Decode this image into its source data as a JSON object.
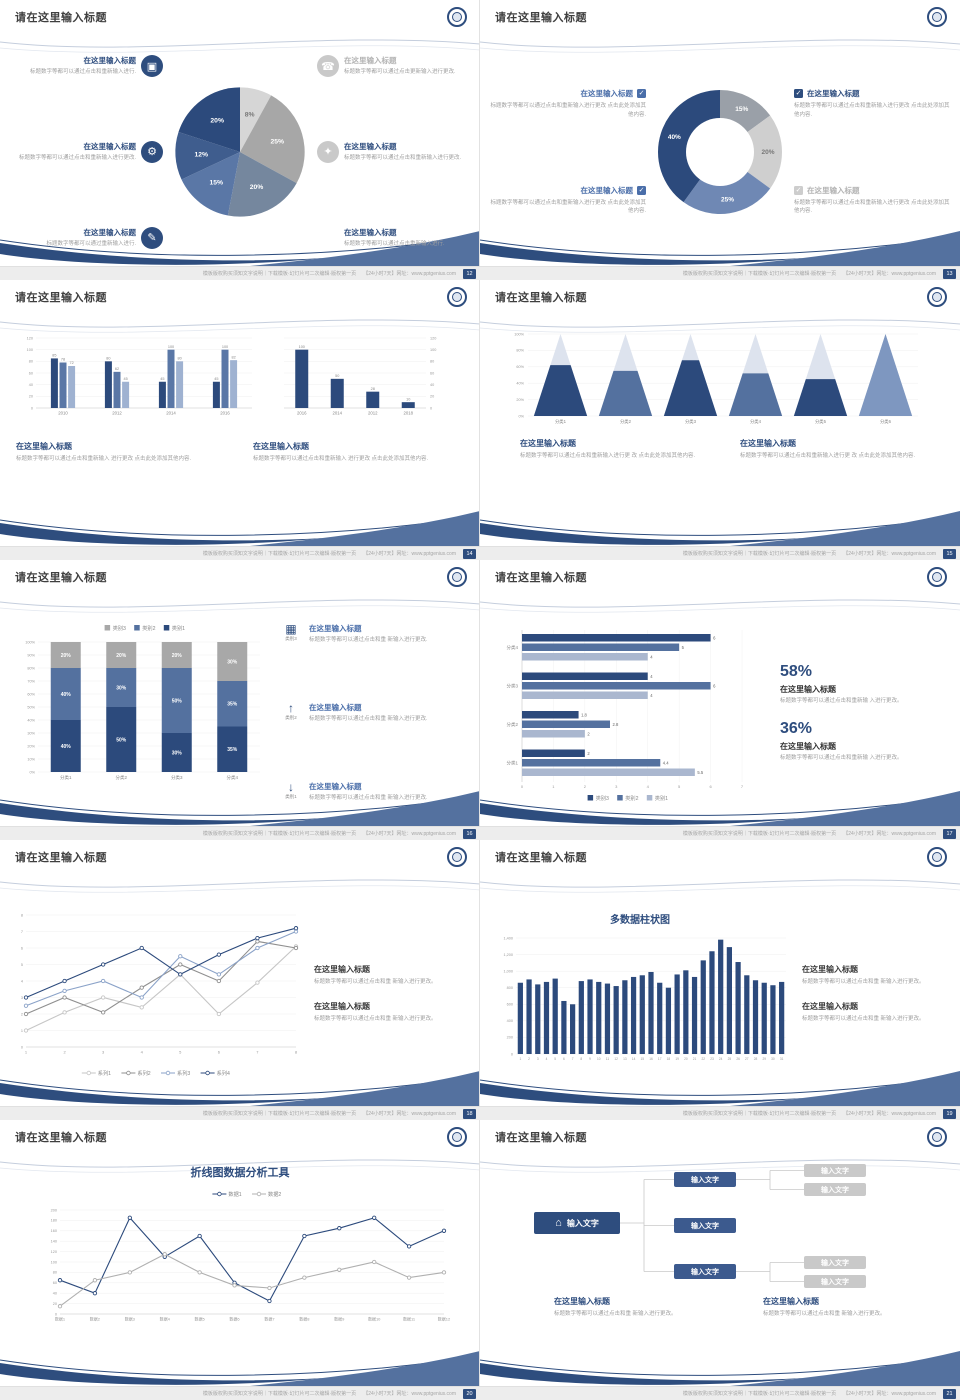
{
  "common": {
    "slide_title": "请在这里输入标题",
    "footer_left": "模板版权购买须知文字说明｜下载模板·幻灯片可二次编辑·版权第一页",
    "footer_meta": "【24小时7天】网址：www.pptgenius.com"
  },
  "colors": {
    "navy": "#2e4d7e",
    "steel": "#54719f",
    "light_blue": "#9fb2d1",
    "gray": "#a8a8a8",
    "light_gray": "#d2d2d2",
    "body_text": "#a0a0a0",
    "title_text": "#3f3f3f"
  },
  "slides": [
    {
      "page": "12",
      "left_items": [
        {
          "icon": "monitor-icon",
          "glyph": "▣",
          "title": "在这里输入标题",
          "body": "标题数字等都可以通过点击和重新输入进行."
        },
        {
          "icon": "car-icon",
          "glyph": "⚙",
          "title": "在这里输入标题",
          "body": "标题数字等都可以通过点击和重新输入进行更改."
        },
        {
          "icon": "book-icon",
          "glyph": "✎",
          "title": "在这里输入标题",
          "body": "标题数字等都可以通过重新输入进行."
        }
      ],
      "right_items": [
        {
          "icon": "phone-icon",
          "glyph": "☎",
          "title": "在这里输入标题",
          "body": "标题数字等都可以通过点击更新输入进行更改."
        },
        {
          "icon": "lock-icon",
          "glyph": "✦",
          "title": "在这里输入标题",
          "body": "标题数字等都可以通过点击和重新输入进行更改."
        },
        {
          "icon": "bike-icon",
          "glyph": "✪",
          "title": "在这里输入标题",
          "body": "标题数字等都可以通过点击重新输入进行."
        }
      ],
      "chart": {
        "type": "pie",
        "values": [
          8,
          25,
          20,
          15,
          12,
          20
        ],
        "labels": [
          "8%",
          "25%",
          "20%",
          "15%",
          "12%",
          "20%"
        ],
        "colors": [
          "#d6d6d6",
          "#a7a7a7",
          "#75879e",
          "#5a77a6",
          "#3f5d8e",
          "#2c4a7c"
        ],
        "label_colors": [
          "#777777",
          "#ffffff",
          "#ffffff",
          "#ffffff",
          "#ffffff",
          "#ffffff"
        ]
      }
    },
    {
      "page": "13",
      "left_items": [
        {
          "check": "✓",
          "title": "在这里输入标题",
          "body": "标题数字等都可以通过点击和重新输入进行更改 点击此处添加其他内容."
        },
        {
          "check": "✓",
          "title": "在这里输入标题",
          "body": "标题数字等都可以通过点击和重新输入进行更改 点击此处添加其他内容."
        }
      ],
      "right_items": [
        {
          "check": "✓",
          "title": "在这里输入标题",
          "body": "标题数字等都可以通过点击和重新输入进行更改 点击此处添加其他内容."
        },
        {
          "check": "✓",
          "title": "在这里输入标题",
          "body": "标题数字等都可以通过点击和重新输入进行更改 点击此处添加其他内容."
        }
      ],
      "chart": {
        "type": "donut",
        "values": [
          15,
          20,
          25,
          40
        ],
        "labels": [
          "15%",
          "20%",
          "25%",
          "40%"
        ],
        "colors": [
          "#9aa0a8",
          "#cfcfcf",
          "#6f88b4",
          "#2c4a7c"
        ],
        "label_colors": [
          "#ffffff",
          "#777777",
          "#ffffff",
          "#ffffff"
        ]
      }
    },
    {
      "page": "14",
      "chart_left": {
        "type": "bar",
        "categories": [
          "2010",
          "2012",
          "2014",
          "2016"
        ],
        "series": [
          {
            "color": "#2c4a7c",
            "values": [
              85,
              80,
              45,
              45
            ]
          },
          {
            "color": "#5a77a6",
            "values": [
              78,
              62,
              100,
              100
            ]
          },
          {
            "color": "#9fb2d1",
            "values": [
              72,
              45,
              80,
              82
            ]
          }
        ],
        "ymax": 120,
        "yticks": [
          0,
          20,
          40,
          60,
          80,
          100,
          120
        ]
      },
      "chart_right": {
        "type": "bar",
        "categories": [
          "2016",
          "2014",
          "2012",
          "2018"
        ],
        "series": [
          {
            "color": "#2c4a7c",
            "values": [
              100,
              50,
              28,
              10
            ]
          }
        ],
        "ymax": 120,
        "yticks": [
          0,
          20,
          40,
          60,
          80,
          100,
          120
        ]
      },
      "text_blocks": [
        {
          "title": "在这里输入标题",
          "body": "标题数字等都可以通过点击和重新输入 进行更改 点击此处添加其他内容."
        },
        {
          "title": "在这里输入标题",
          "body": "标题数字等都可以通过点击和重新输入 进行更改 点击此处添加其他内容."
        }
      ]
    },
    {
      "page": "15",
      "chart": {
        "type": "pyramid",
        "categories": [
          "分类1",
          "分类2",
          "分类3",
          "分类4",
          "分类5",
          "分类6"
        ],
        "fill": [
          0.62,
          0.55,
          0.68,
          0.52,
          0.45,
          1
        ],
        "colors": [
          "#2c4a7c",
          "#54719f",
          "#2c4a7c",
          "#54719f",
          "#2c4a7c",
          "#7e97c0"
        ],
        "top_color": "#dde3ee",
        "yticks": [
          "0%",
          "20%",
          "40%",
          "60%",
          "80%",
          "100%"
        ]
      },
      "text_blocks": [
        {
          "title": "在这里输入标题",
          "body": "标题数字等都可以通过点击和重新输入进行更 改 点击此处添加其他内容."
        },
        {
          "title": "在这里输入标题",
          "body": "标题数字等都可以通过点击和重新输入进行更 改 点击此处添加其他内容."
        }
      ]
    },
    {
      "page": "16",
      "chart": {
        "type": "stacked",
        "categories": [
          "分类1",
          "分类2",
          "分类3",
          "分类4"
        ],
        "series": [
          {
            "name": "类别1",
            "color": "#2c4a7c",
            "values": [
              40,
              50,
              30,
              35
            ]
          },
          {
            "name": "类别2",
            "color": "#54719f",
            "values": [
              40,
              30,
              50,
              35
            ]
          },
          {
            "name": "类别3",
            "color": "#a8a8a8",
            "values": [
              20,
              20,
              20,
              30
            ]
          }
        ],
        "legend": [
          {
            "name": "类别3",
            "color": "#a8a8a8"
          },
          {
            "name": "类别2",
            "color": "#54719f"
          },
          {
            "name": "类别1",
            "color": "#2c4a7c"
          }
        ],
        "yticks": [
          "0%",
          "10%",
          "20%",
          "30%",
          "40%",
          "50%",
          "60%",
          "70%",
          "80%",
          "90%",
          "100%"
        ]
      },
      "right_items": [
        {
          "icon": "chart-icon",
          "glyph": "▦",
          "label": "类别3",
          "title": "在这里输入标题",
          "body": "标题数字等都可以通过点击和重 新输入进行更改."
        },
        {
          "icon": "up-arrow-icon",
          "glyph": "↑",
          "label": "类别2",
          "title": "在这里输入标题",
          "body": "标题数字等都可以通过点击和重 新输入进行更改."
        },
        {
          "icon": "down-arrow-icon",
          "glyph": "↓",
          "label": "类别1",
          "title": "在这里输入标题",
          "body": "标题数字等都可以通过点击和重 新输入进行更改."
        }
      ]
    },
    {
      "page": "17",
      "chart": {
        "type": "hbar",
        "categories": [
          "分类4",
          "分类3",
          "分类2",
          "分类1"
        ],
        "series": [
          {
            "name": "类别3",
            "color": "#2c4a7c",
            "values": [
              6,
              4,
              1.8,
              2
            ]
          },
          {
            "name": "类别2",
            "color": "#54719f",
            "values": [
              5,
              6,
              2.8,
              4.4
            ]
          },
          {
            "name": "类别1",
            "color": "#aab7cf",
            "values": [
              4,
              4,
              2,
              5.5
            ]
          }
        ],
        "xmax": 7,
        "xticks": [
          0,
          1,
          2,
          3,
          4,
          5,
          6,
          7
        ],
        "legend": [
          {
            "name": "类别3",
            "color": "#2c4a7c"
          },
          {
            "name": "类别2",
            "color": "#54719f"
          },
          {
            "name": "类别1",
            "color": "#aab7cf"
          }
        ]
      },
      "stats": [
        {
          "value": "58%",
          "title": "在这里输入标题",
          "body": "标题数字等都可以通过点击和重新输 入进行更改。"
        },
        {
          "value": "36%",
          "title": "在这里输入标题",
          "body": "标题数字等都可以通过点击和重新输 入进行更改。"
        }
      ]
    },
    {
      "page": "18",
      "chart": {
        "type": "line",
        "x_labels": [
          "1",
          "2",
          "3",
          "4",
          "5",
          "6",
          "7",
          "8"
        ],
        "ymax": 8,
        "yticks": [
          0,
          1,
          2,
          3,
          4,
          5,
          6,
          7,
          8
        ],
        "series": [
          {
            "name": "系列1",
            "color": "#c6c6c6",
            "values": [
              1,
              2.1,
              3,
              2.4,
              4.4,
              2,
              3.9,
              6.1
            ]
          },
          {
            "name": "系列2",
            "color": "#8f8f8f",
            "values": [
              2,
              3,
              2.1,
              3.6,
              5,
              4,
              6.4,
              6
            ]
          },
          {
            "name": "系列3",
            "color": "#8aa2c8",
            "values": [
              2.5,
              3.4,
              4,
              3,
              5.5,
              4.4,
              6,
              7
            ]
          },
          {
            "name": "系列4",
            "color": "#2c4a7c",
            "values": [
              3,
              4,
              5,
              6,
              4.4,
              5.6,
              6.6,
              7.2
            ]
          }
        ]
      },
      "text_blocks": [
        {
          "title": "在这里输入标题",
          "body": "标题数字等都可以通过点击和重 新输入进行更改。"
        },
        {
          "title": "在这里输入标题",
          "body": "标题数字等都可以通过点击和重 新输入进行更改。"
        }
      ]
    },
    {
      "page": "19",
      "chart_title": "多数据柱状图",
      "chart": {
        "type": "column",
        "color": "#2c4a7c",
        "ymax": 1400,
        "yticks": [
          "0",
          "200",
          "400",
          "600",
          "800",
          "1,000",
          "1,200",
          "1,400"
        ],
        "x_labels": [
          "1",
          "2",
          "3",
          "4",
          "5",
          "6",
          "7",
          "8",
          "9",
          "10",
          "11",
          "12",
          "13",
          "14",
          "15",
          "16",
          "17",
          "18",
          "19",
          "20",
          "21",
          "22",
          "23",
          "24",
          "25",
          "26",
          "27",
          "28",
          "29",
          "30",
          "31"
        ],
        "values": [
          860,
          900,
          840,
          870,
          910,
          640,
          600,
          880,
          900,
          870,
          850,
          820,
          890,
          930,
          950,
          990,
          860,
          800,
          960,
          1010,
          930,
          1130,
          1240,
          1380,
          1290,
          1110,
          950,
          890,
          860,
          830,
          870
        ]
      },
      "text_blocks": [
        {
          "title": "在这里输入标题",
          "body": "标题数字等都可以通过点击和重 新输入进行更改。"
        },
        {
          "title": "在这里输入标题",
          "body": "标题数字等都可以通过点击和重 新输入进行更改。"
        }
      ]
    },
    {
      "page": "20",
      "chart_title": "折线图数据分析工具",
      "chart": {
        "type": "line",
        "x_labels": [
          "数据1",
          "数据2",
          "数据3",
          "数据4",
          "数据5",
          "数据6",
          "数据7",
          "数据8",
          "数据9",
          "数据10",
          "数据11",
          "数据12"
        ],
        "ymax": 200,
        "yticks": [
          0,
          20,
          40,
          60,
          80,
          100,
          120,
          140,
          160,
          180,
          200
        ],
        "series": [
          {
            "name": "数据1",
            "color": "#2c4a7c",
            "values": [
              65,
              40,
              185,
              110,
              150,
              60,
              25,
              150,
              165,
              185,
              130,
              160
            ]
          },
          {
            "name": "数据2",
            "color": "#b0b0b0",
            "values": [
              15,
              65,
              80,
              115,
              80,
              55,
              50,
              70,
              85,
              100,
              70,
              80
            ]
          }
        ]
      }
    },
    {
      "page": "21",
      "root": {
        "icon": "home-icon",
        "glyph": "⌂",
        "label": "输入文字"
      },
      "mid_boxes": [
        "输入文字",
        "输入文字",
        "输入文字"
      ],
      "leaf_boxes": [
        "输入文字",
        "输入文字",
        "输入文字",
        "输入文字"
      ],
      "text_blocks": [
        {
          "title": "在这里输入标题",
          "body": "标题数字等都可以通过点击和重 新输入进行更改。"
        },
        {
          "title": "在这里输入标题",
          "body": "标题数字等都可以通过点击和重 新输入进行更改。"
        }
      ]
    }
  ]
}
